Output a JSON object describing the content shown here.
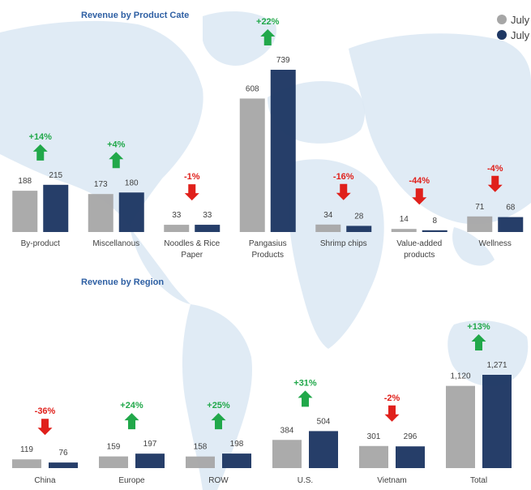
{
  "colors": {
    "prior": "#a6a6a6",
    "current": "#1f3864",
    "up": "#21a84a",
    "down": "#e0201b",
    "map": "#dbe8f3",
    "title": "#2e5fa3"
  },
  "legend": {
    "placement": "top-right",
    "items": [
      {
        "label": "July",
        "color": "#a6a6a6"
      },
      {
        "label": "July",
        "color": "#1f3864"
      }
    ]
  },
  "chart_data": [
    {
      "type": "bar",
      "title": "Revenue by Product Cate",
      "categories": [
        [
          "By-product"
        ],
        [
          "Miscellanous"
        ],
        [
          "Noodles & Rice",
          "Paper"
        ],
        [
          "Pangasius",
          "Products"
        ],
        [
          "Shrimp chips"
        ],
        [
          "Value-added",
          "products"
        ],
        [
          "Wellness"
        ]
      ],
      "series": [
        {
          "name": "July",
          "values": [
            188,
            173,
            33,
            608,
            34,
            14,
            71
          ]
        },
        {
          "name": "July",
          "values": [
            215,
            180,
            33,
            739,
            28,
            8,
            68
          ]
        }
      ],
      "changes": [
        "+14%",
        "+4%",
        "-1%",
        "+22%",
        "-16%",
        "-44%",
        "-4%"
      ],
      "value_labels": [
        [
          "188",
          "173",
          "33",
          "608",
          "34",
          "14",
          "71"
        ],
        [
          "215",
          "180",
          "33",
          "739",
          "28",
          "8",
          "68"
        ]
      ],
      "ylim": [
        0,
        800
      ]
    },
    {
      "type": "bar",
      "title": "Revenue by Region",
      "categories": [
        [
          "China"
        ],
        [
          "Europe"
        ],
        [
          "ROW"
        ],
        [
          "U.S."
        ],
        [
          "Vietnam"
        ],
        [
          "Total"
        ]
      ],
      "series": [
        {
          "name": "July",
          "values": [
            119,
            159,
            158,
            384,
            301,
            1120
          ]
        },
        {
          "name": "July",
          "values": [
            76,
            197,
            198,
            504,
            296,
            1271
          ]
        }
      ],
      "changes": [
        "-36%",
        "+24%",
        "+25%",
        "+31%",
        "-2%",
        "+13%"
      ],
      "value_labels": [
        [
          "119",
          "159",
          "158",
          "384",
          "301",
          "1,120"
        ],
        [
          "76",
          "197",
          "198",
          "504",
          "296",
          "1,271"
        ]
      ],
      "ylim": [
        0,
        1400
      ]
    }
  ]
}
